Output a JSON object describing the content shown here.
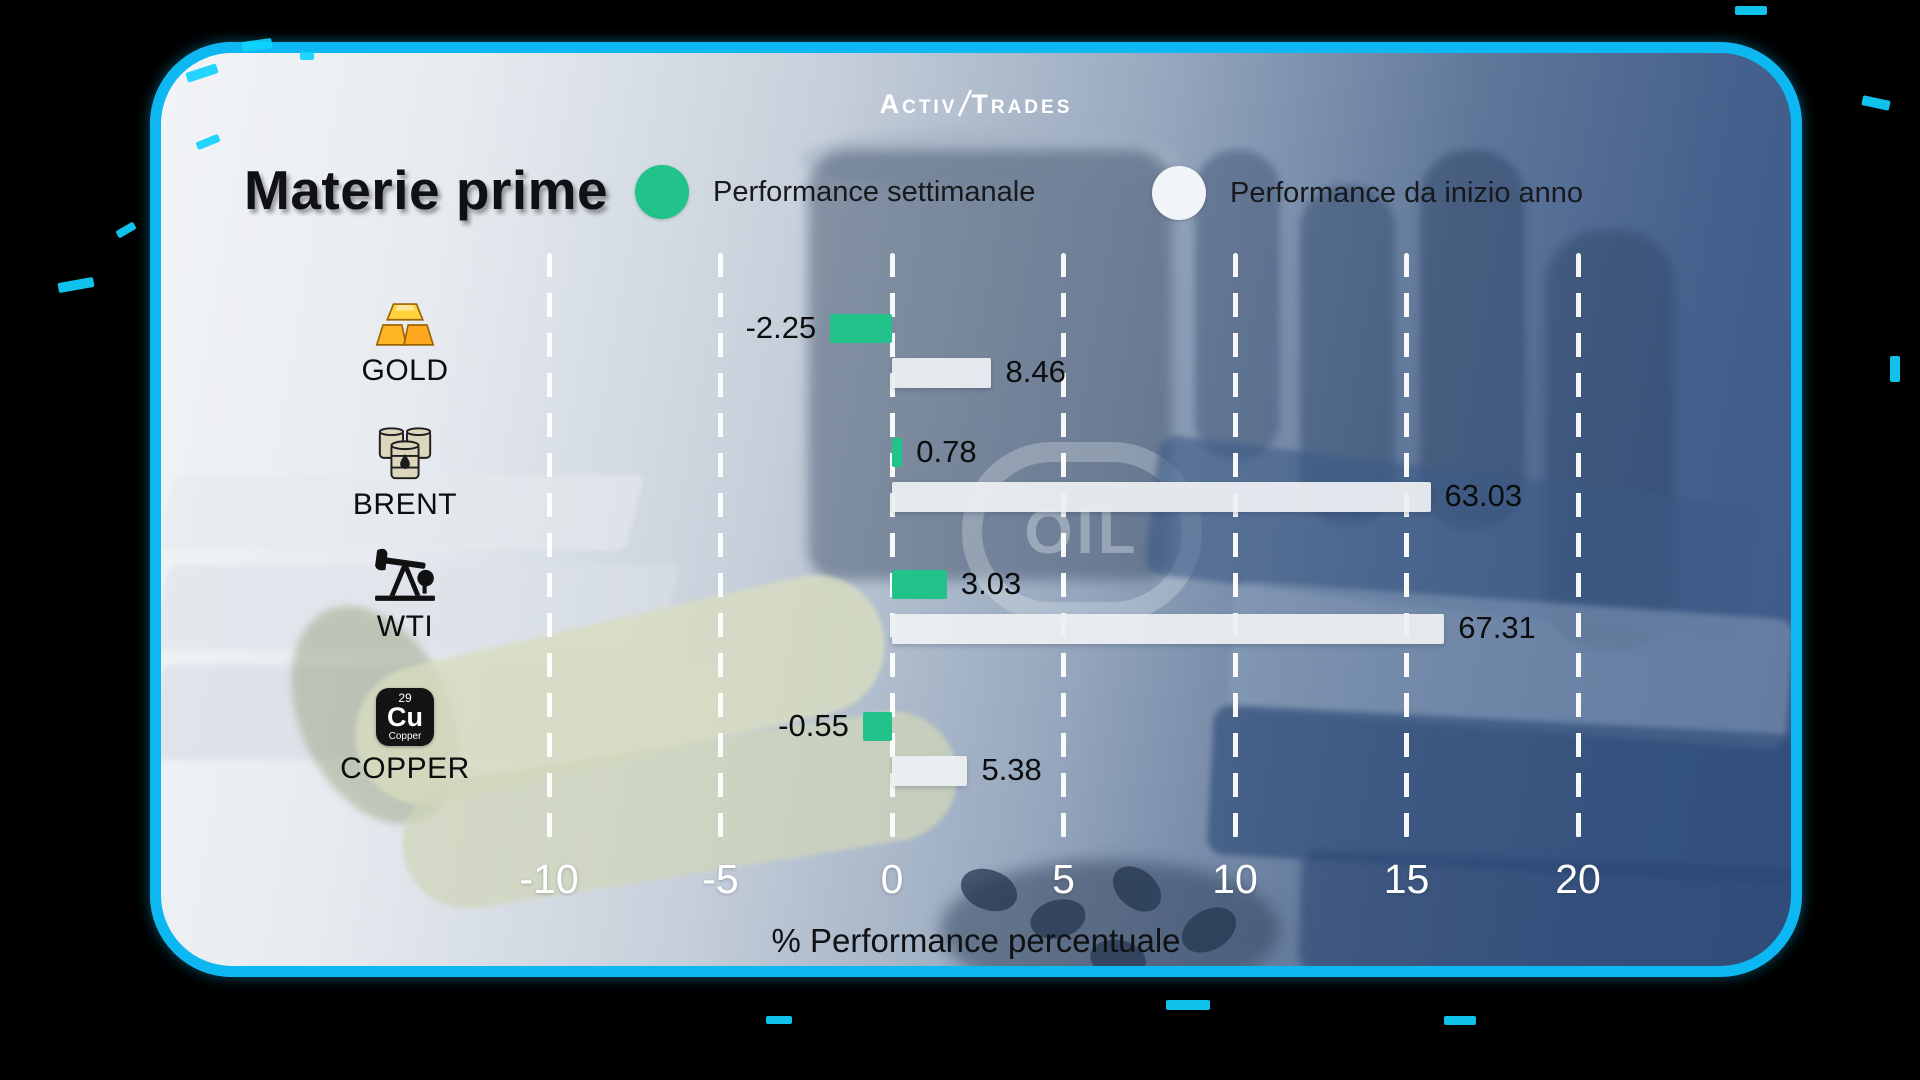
{
  "window": {
    "outside_color": "#000000",
    "frame_border_color": "#0db7f2"
  },
  "logo": {
    "part1": "Activ",
    "part2": "Trades"
  },
  "title": "Materie prime",
  "legend": [
    {
      "label": "Performance settimanale",
      "color": "#21c38a"
    },
    {
      "label": "Performance da inizio anno",
      "color": "#f2f5f7"
    }
  ],
  "background": {
    "watermark": "OIL"
  },
  "rows": [
    {
      "category": "GOLD",
      "icon": "gold-bars-icon"
    },
    {
      "category": "BRENT",
      "icon": "oil-barrels-icon"
    },
    {
      "category": "WTI",
      "icon": "oil-pump-icon"
    },
    {
      "category": "COPPER",
      "icon": "copper-element-icon"
    }
  ],
  "copper_tile": {
    "number": "29",
    "symbol": "Cu",
    "name": "Copper"
  },
  "chart_data": {
    "type": "bar",
    "orientation": "horizontal",
    "title": "Materie prime",
    "categories": [
      "GOLD",
      "BRENT",
      "WTI",
      "COPPER"
    ],
    "series": [
      {
        "name": "Performance settimanale",
        "color": "#21c38a",
        "values": [
          -2.25,
          0.78,
          3.03,
          -0.55
        ]
      },
      {
        "name": "Performance da inizio anno",
        "color": "#eef1f4",
        "values": [
          8.46,
          63.03,
          67.31,
          5.38
        ]
      }
    ],
    "xlabel": "% Performance percentuale",
    "x_ticks": [
      -10,
      -5,
      0,
      5,
      10,
      15,
      20
    ],
    "xlim": [
      -13,
      23
    ],
    "grid": "vertical-dashed-white",
    "legend_position": "top",
    "bar_display_units": {
      "weekly": [
        -1.8,
        0.3,
        1.6,
        -0.85
      ],
      "ytd": [
        2.9,
        15.7,
        16.1,
        2.2
      ]
    }
  }
}
